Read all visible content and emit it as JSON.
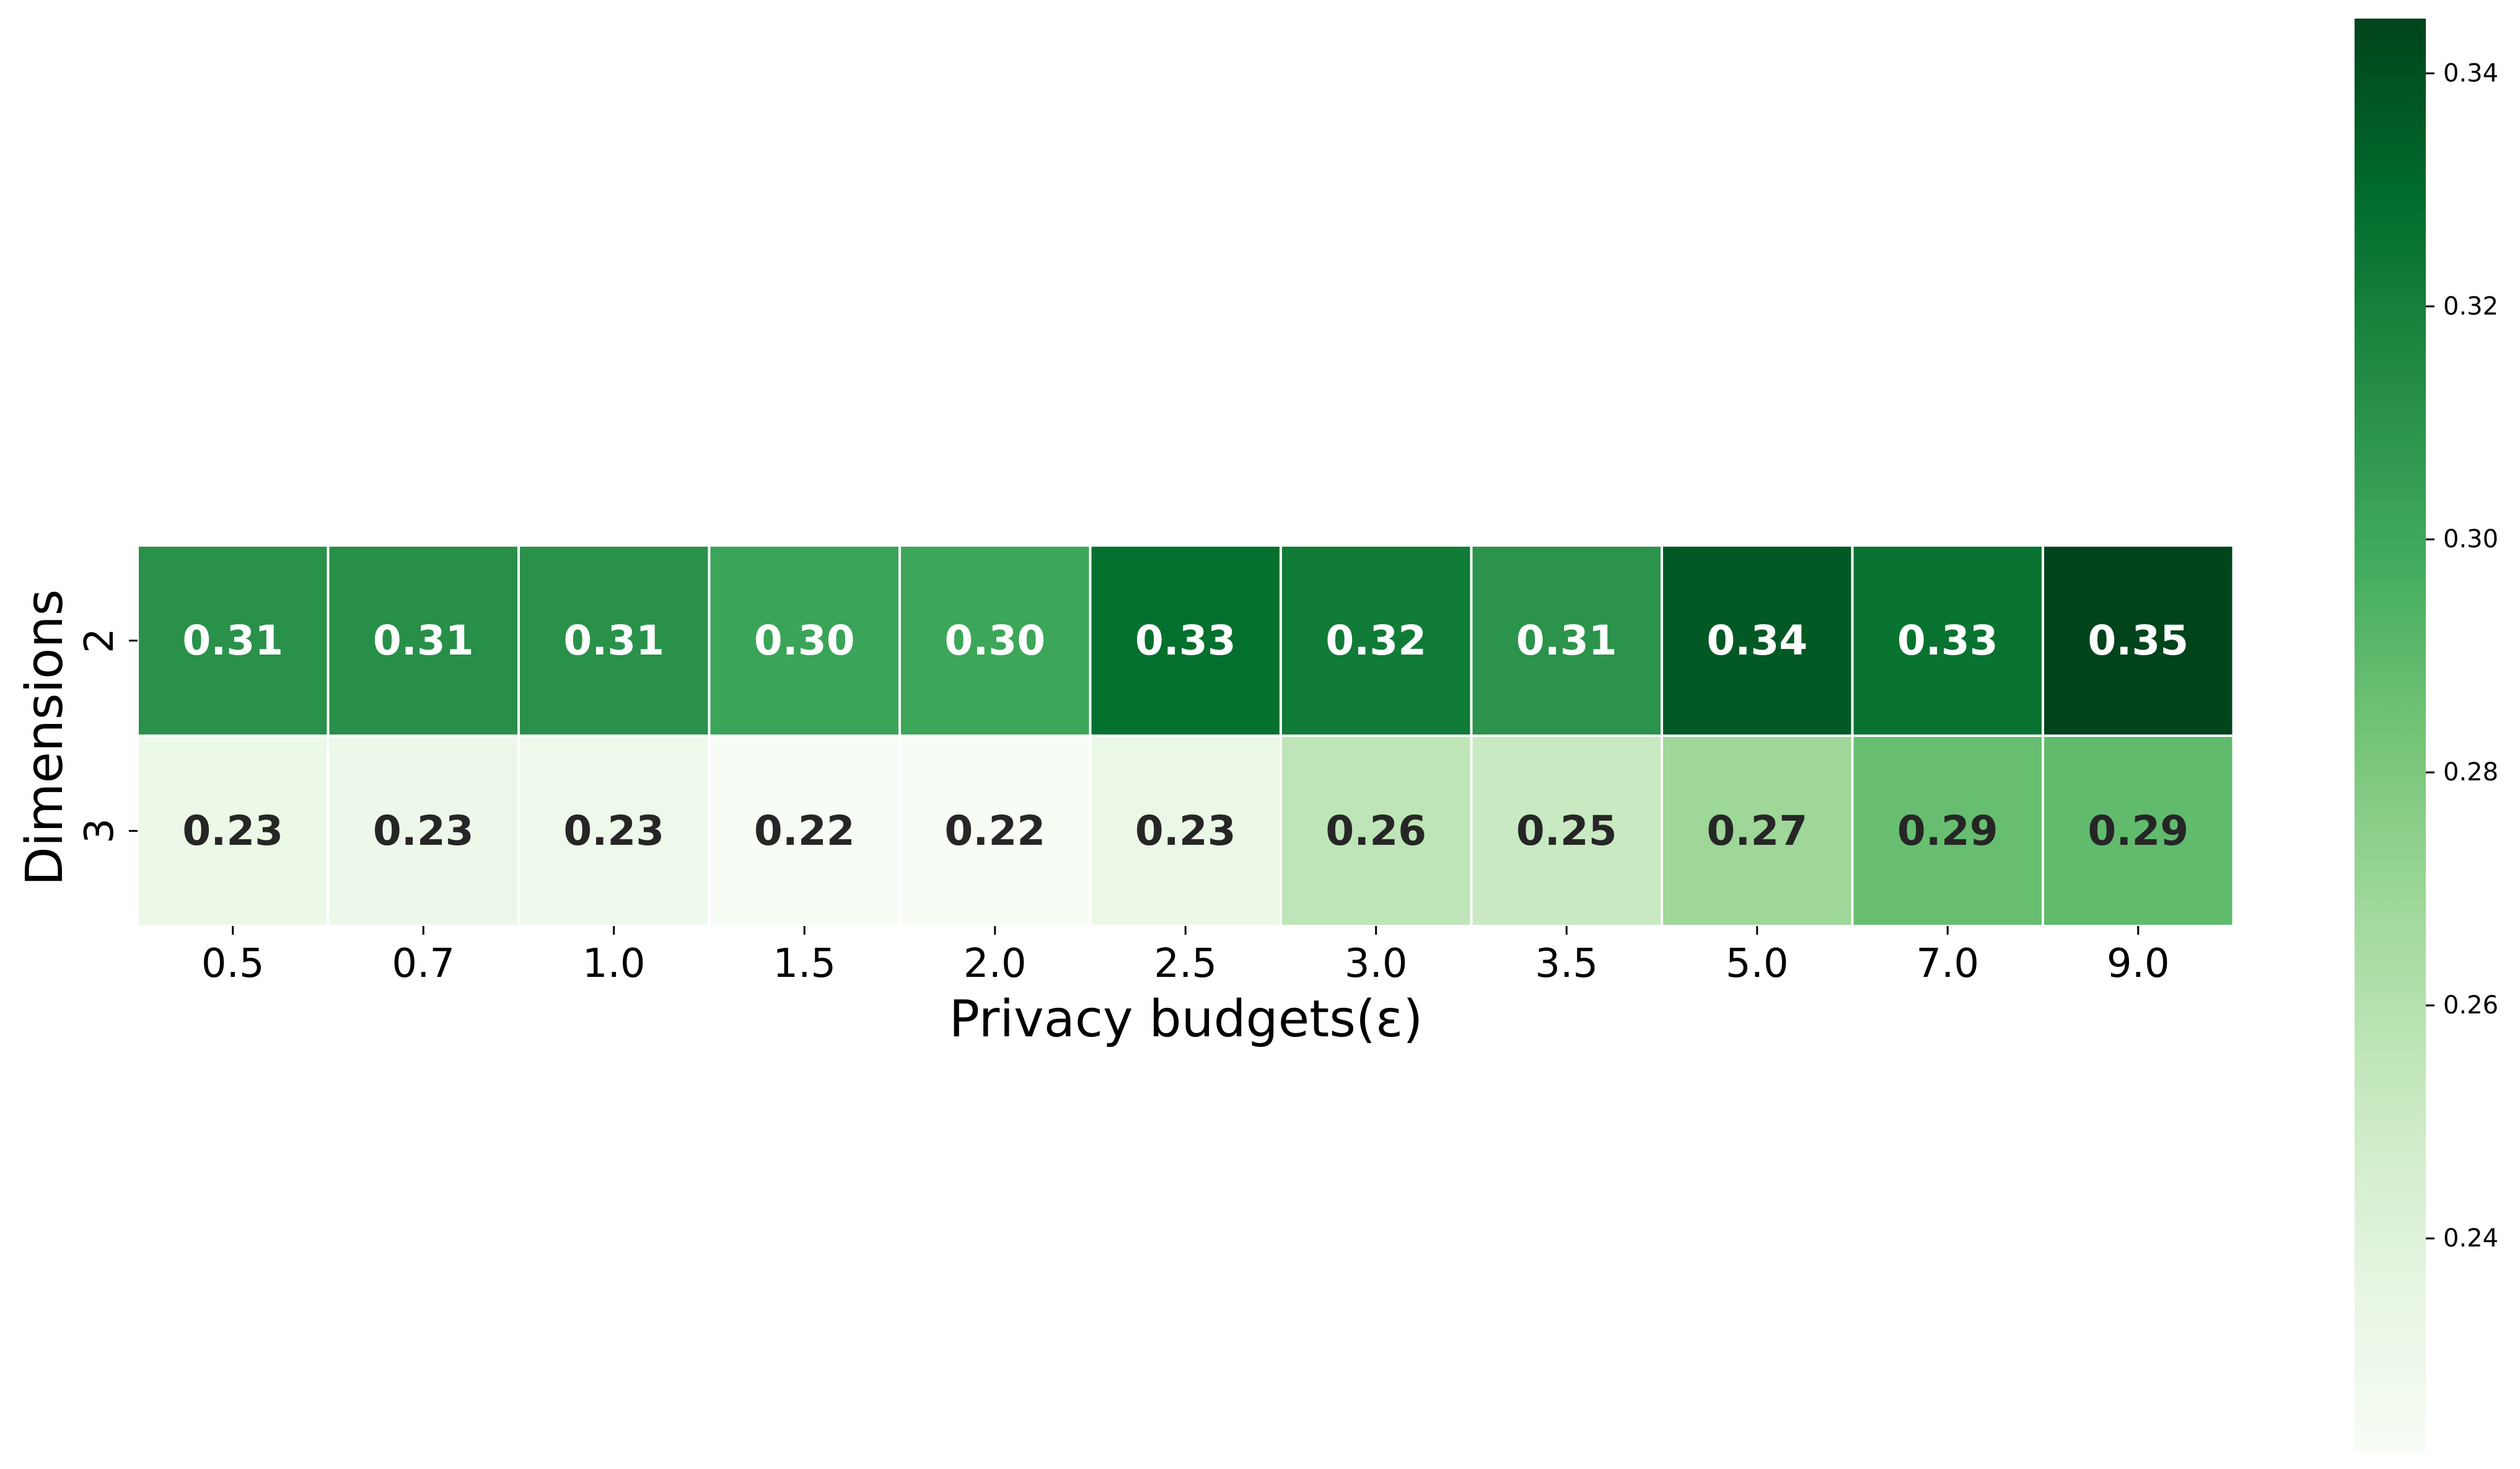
{
  "chart_data": {
    "type": "heatmap",
    "colormap": "Greens",
    "title": "",
    "xlabel": "Privacy budgets(ε)",
    "ylabel": "Dimensions",
    "x_categories": [
      "0.5",
      "0.7",
      "1.0",
      "1.5",
      "2.0",
      "2.5",
      "3.0",
      "3.5",
      "5.0",
      "7.0",
      "9.0"
    ],
    "y_categories": [
      "2",
      "3"
    ],
    "values": [
      [
        0.311,
        0.312,
        0.311,
        0.302,
        0.301,
        0.328,
        0.322,
        0.31,
        0.337,
        0.326,
        0.345
      ],
      [
        0.231,
        0.23,
        0.229,
        0.222,
        0.222,
        0.232,
        0.256,
        0.252,
        0.269,
        0.287,
        0.289
      ]
    ],
    "cell_labels": [
      [
        "0.31",
        "0.31",
        "0.31",
        "0.30",
        "0.30",
        "0.33",
        "0.32",
        "0.31",
        "0.34",
        "0.33",
        "0.35"
      ],
      [
        "0.23",
        "0.23",
        "0.23",
        "0.22",
        "0.22",
        "0.23",
        "0.26",
        "0.25",
        "0.27",
        "0.29",
        "0.29"
      ]
    ],
    "colorbar": {
      "vmin": 0.2217,
      "vmax": 0.3447,
      "ticks": [
        0.24,
        0.26,
        0.28,
        0.3,
        0.32,
        0.34
      ],
      "tick_labels": [
        "0.24",
        "0.26",
        "0.28",
        "0.30",
        "0.32",
        "0.34"
      ]
    },
    "label_colors": {
      "light_text": "#ffffff",
      "dark_text": "#262626"
    },
    "grid": false,
    "legend": "colorbar-right"
  }
}
